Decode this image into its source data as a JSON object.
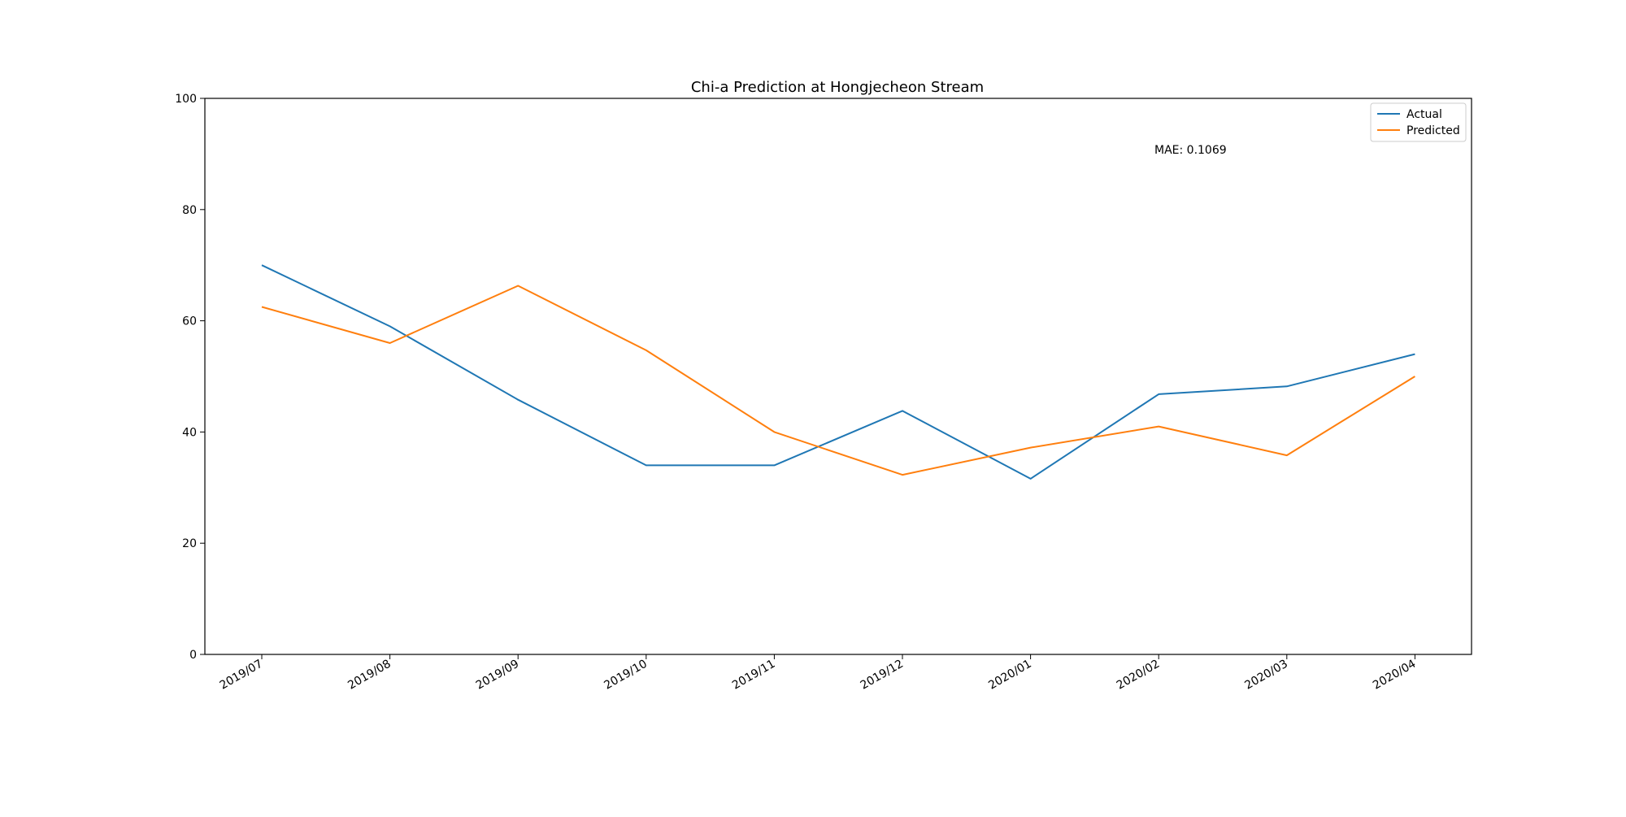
{
  "chart_data": {
    "type": "line",
    "title": "Chi-a Prediction at Hongjecheon Stream",
    "xlabel": "",
    "ylabel": "",
    "categories": [
      "2019/07",
      "2019/08",
      "2019/09",
      "2019/10",
      "2019/11",
      "2019/12",
      "2020/01",
      "2020/02",
      "2020/03",
      "2020/04"
    ],
    "series": [
      {
        "name": "Actual",
        "color": "#1f77b4",
        "values": [
          70.0,
          59.0,
          45.8,
          34.0,
          34.0,
          43.8,
          31.6,
          46.8,
          48.2,
          54.0
        ]
      },
      {
        "name": "Predicted",
        "color": "#ff7f0e",
        "values": [
          62.5,
          56.0,
          66.3,
          54.7,
          40.0,
          32.3,
          37.2,
          41.0,
          35.8,
          50.0
        ]
      }
    ],
    "ylim": [
      0,
      100
    ],
    "yticks": [
      0,
      20,
      40,
      60,
      80,
      100
    ],
    "grid": false,
    "legend_position": "top-right",
    "annotation": "MAE: 0.1069"
  }
}
